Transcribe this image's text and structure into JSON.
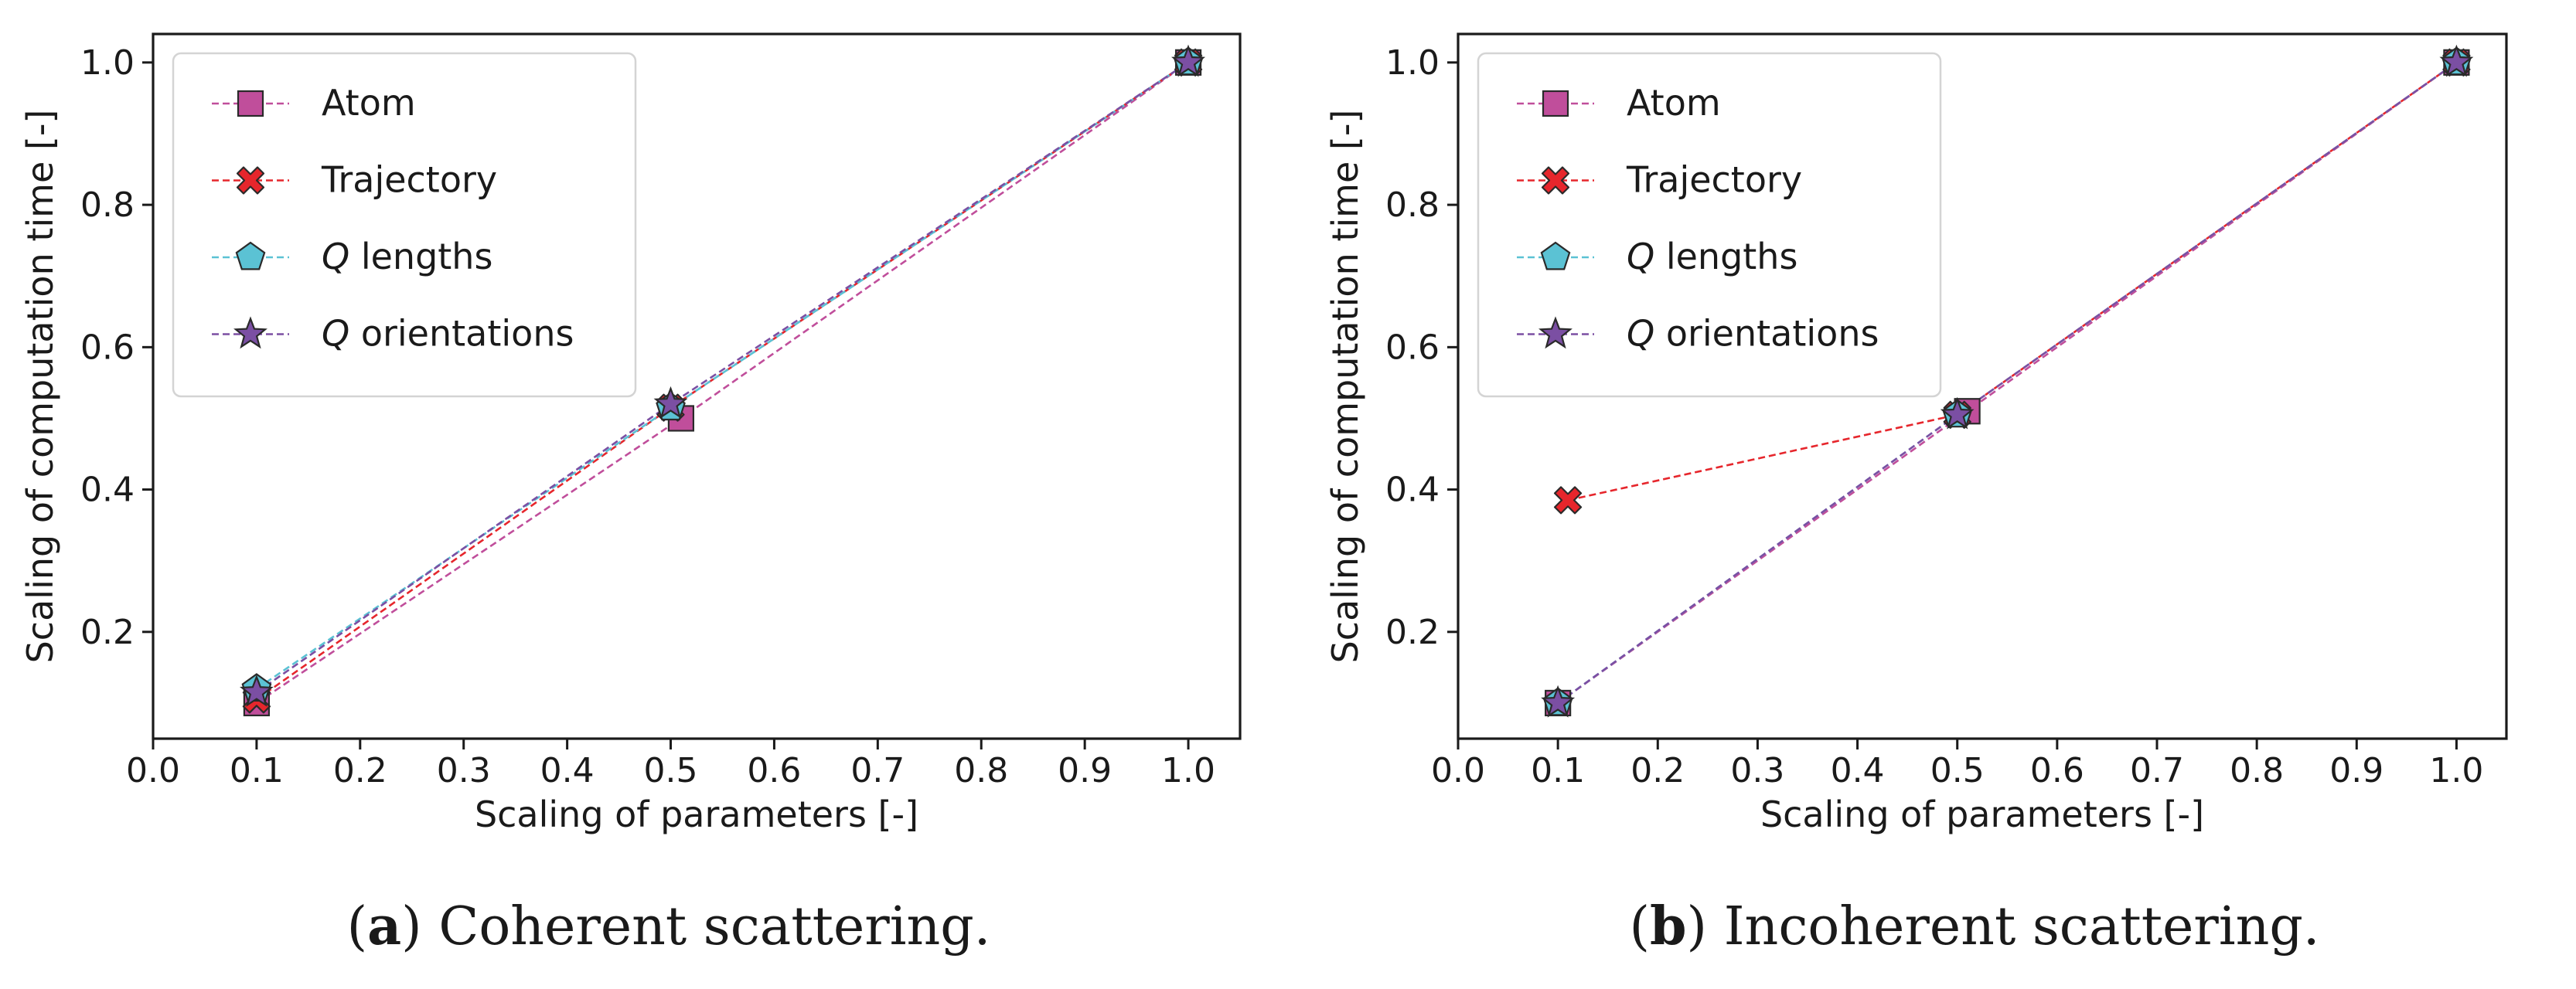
{
  "chart_data": [
    {
      "type": "line",
      "panel_letter": "a",
      "caption_text": " Coherent scattering.",
      "xlabel": "Scaling of parameters [-]",
      "ylabel": "Scaling of computation time [-]",
      "xlim": [
        0.0,
        1.05
      ],
      "ylim": [
        0.05,
        1.04
      ],
      "xticks": [
        0.0,
        0.1,
        0.2,
        0.3,
        0.4,
        0.5,
        0.6,
        0.7,
        0.8,
        0.9,
        1.0
      ],
      "xtick_labels": [
        "0.0",
        "0.1",
        "0.2",
        "0.3",
        "0.4",
        "0.5",
        "0.6",
        "0.7",
        "0.8",
        "0.9",
        "1.0"
      ],
      "yticks": [
        0.2,
        0.4,
        0.6,
        0.8,
        1.0
      ],
      "ytick_labels": [
        "0.2",
        "0.4",
        "0.6",
        "0.8",
        "1.0"
      ],
      "grid": false,
      "legend_position": "top-left",
      "series": [
        {
          "name": "Atom",
          "italic_prefix": "",
          "label_rest": "Atom",
          "marker": "square",
          "color": "#c04e9b",
          "x": [
            0.1,
            0.51,
            1.0
          ],
          "y": [
            0.1,
            0.5,
            1.0
          ]
        },
        {
          "name": "Trajectory",
          "italic_prefix": "",
          "label_rest": "Trajectory",
          "marker": "x",
          "color": "#e6262c",
          "x": [
            0.1,
            0.5,
            1.0
          ],
          "y": [
            0.105,
            0.515,
            1.0
          ]
        },
        {
          "name": "Q lengths",
          "italic_prefix": "Q",
          "label_rest": " lengths",
          "marker": "pentagon",
          "color": "#5bc2d4",
          "x": [
            0.1,
            0.5,
            1.0
          ],
          "y": [
            0.12,
            0.515,
            1.0
          ]
        },
        {
          "name": "Q orientations",
          "italic_prefix": "Q",
          "label_rest": " orientations",
          "marker": "star",
          "color": "#7b4fa3",
          "x": [
            0.1,
            0.5,
            1.0
          ],
          "y": [
            0.115,
            0.52,
            1.0
          ]
        }
      ]
    },
    {
      "type": "line",
      "panel_letter": "b",
      "caption_text": " Incoherent scattering.",
      "xlabel": "Scaling of parameters [-]",
      "ylabel": "Scaling of computation time [-]",
      "xlim": [
        0.0,
        1.05
      ],
      "ylim": [
        0.05,
        1.04
      ],
      "xticks": [
        0.0,
        0.1,
        0.2,
        0.3,
        0.4,
        0.5,
        0.6,
        0.7,
        0.8,
        0.9,
        1.0
      ],
      "xtick_labels": [
        "0.0",
        "0.1",
        "0.2",
        "0.3",
        "0.4",
        "0.5",
        "0.6",
        "0.7",
        "0.8",
        "0.9",
        "1.0"
      ],
      "yticks": [
        0.2,
        0.4,
        0.6,
        0.8,
        1.0
      ],
      "ytick_labels": [
        "0.2",
        "0.4",
        "0.6",
        "0.8",
        "1.0"
      ],
      "grid": false,
      "legend_position": "top-left",
      "series": [
        {
          "name": "Atom",
          "italic_prefix": "",
          "label_rest": "Atom",
          "marker": "square",
          "color": "#c04e9b",
          "x": [
            0.1,
            0.51,
            1.0
          ],
          "y": [
            0.1,
            0.51,
            1.0
          ]
        },
        {
          "name": "Trajectory",
          "italic_prefix": "",
          "label_rest": "Trajectory",
          "marker": "x",
          "color": "#e6262c",
          "x": [
            0.11,
            0.5,
            1.0
          ],
          "y": [
            0.385,
            0.505,
            1.0
          ]
        },
        {
          "name": "Q lengths",
          "italic_prefix": "Q",
          "label_rest": " lengths",
          "marker": "pentagon",
          "color": "#5bc2d4",
          "x": [
            0.1,
            0.5,
            1.0
          ],
          "y": [
            0.1,
            0.505,
            1.0
          ]
        },
        {
          "name": "Q orientations",
          "italic_prefix": "Q",
          "label_rest": " orientations",
          "marker": "star",
          "color": "#7b4fa3",
          "x": [
            0.1,
            0.5,
            1.0
          ],
          "y": [
            0.1,
            0.505,
            1.0
          ]
        }
      ]
    }
  ]
}
